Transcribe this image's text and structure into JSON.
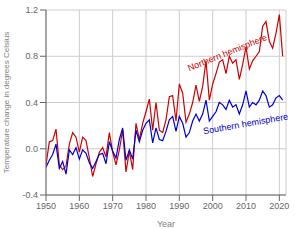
{
  "chart_data": {
    "type": "line",
    "x_label": "Year",
    "y_label": "Temperature change in degrees Celsius",
    "x": [
      1950,
      1951,
      1952,
      1953,
      1954,
      1955,
      1956,
      1957,
      1958,
      1959,
      1960,
      1961,
      1962,
      1963,
      1964,
      1965,
      1966,
      1967,
      1968,
      1969,
      1970,
      1971,
      1972,
      1973,
      1974,
      1975,
      1976,
      1977,
      1978,
      1979,
      1980,
      1981,
      1982,
      1983,
      1984,
      1985,
      1986,
      1987,
      1988,
      1989,
      1990,
      1991,
      1992,
      1993,
      1994,
      1995,
      1996,
      1997,
      1998,
      1999,
      2000,
      2001,
      2002,
      2003,
      2004,
      2005,
      2006,
      2007,
      2008,
      2009,
      2010,
      2011,
      2012,
      2013,
      2014,
      2015,
      2016,
      2017,
      2018,
      2019,
      2020,
      2021
    ],
    "series": [
      {
        "name": "Northern hemisphere",
        "color": "#cc0000",
        "values": [
          -0.14,
          0.06,
          0.07,
          0.17,
          -0.14,
          -0.18,
          -0.15,
          0.04,
          0.14,
          0.1,
          -0.03,
          0.1,
          0.07,
          -0.08,
          -0.24,
          -0.13,
          -0.03,
          0.01,
          -0.07,
          0.14,
          -0.03,
          -0.14,
          -0.01,
          0.16,
          -0.2,
          -0.02,
          -0.18,
          0.22,
          0.08,
          0.22,
          0.32,
          0.43,
          0.16,
          0.4,
          0.16,
          0.14,
          0.25,
          0.45,
          0.46,
          0.24,
          0.56,
          0.48,
          0.23,
          0.3,
          0.4,
          0.55,
          0.41,
          0.54,
          0.76,
          0.42,
          0.56,
          0.65,
          0.75,
          0.77,
          0.65,
          0.8,
          0.74,
          0.77,
          0.6,
          0.73,
          0.88,
          0.69,
          0.76,
          0.8,
          0.84,
          1.06,
          1.1,
          0.93,
          0.87,
          1.0,
          1.16,
          0.8
        ]
      },
      {
        "name": "Southern hemisphere",
        "color": "#0000cc",
        "values": [
          -0.16,
          -0.1,
          -0.05,
          0.04,
          -0.17,
          -0.11,
          -0.22,
          -0.01,
          -0.05,
          0.01,
          -0.09,
          -0.01,
          -0.04,
          -0.12,
          -0.17,
          -0.11,
          -0.05,
          -0.04,
          -0.13,
          0.06,
          -0.02,
          -0.08,
          0.08,
          0.18,
          -0.1,
          -0.01,
          -0.09,
          0.16,
          0.06,
          0.16,
          0.22,
          0.25,
          0.05,
          0.18,
          0.08,
          0.07,
          0.15,
          0.25,
          0.28,
          0.15,
          0.28,
          0.22,
          0.1,
          0.14,
          0.24,
          0.3,
          0.24,
          0.3,
          0.42,
          0.24,
          0.28,
          0.32,
          0.4,
          0.38,
          0.34,
          0.42,
          0.36,
          0.38,
          0.3,
          0.38,
          0.5,
          0.36,
          0.4,
          0.38,
          0.42,
          0.5,
          0.46,
          0.36,
          0.38,
          0.44,
          0.46,
          0.42
        ]
      }
    ],
    "annotations": [
      {
        "text": "Northern hemisphere",
        "x": 1993,
        "y": 0.67,
        "color": "#cc0000"
      },
      {
        "text": "Southern hemisphere",
        "x": 1997,
        "y": 0.18,
        "color": "#0000cc"
      }
    ],
    "xlim": [
      1950,
      2022
    ],
    "xticks": [
      1950,
      1960,
      1970,
      1980,
      1990,
      2000,
      2010,
      2020
    ],
    "ylim": [
      -0.4,
      1.2
    ],
    "yticks": [
      -0.4,
      {
        "value": 0.0,
        "label": "0.0"
      },
      0.4,
      0.8,
      1.2
    ],
    "grid": true,
    "marker": "none"
  }
}
